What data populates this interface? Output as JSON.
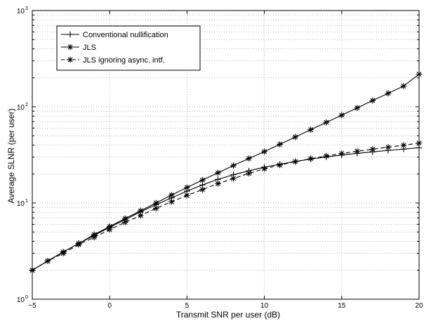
{
  "chart_data": {
    "type": "line",
    "title": "",
    "xlabel": "Transmit SNR per user (dB)",
    "ylabel": "Average SLNR (per user)",
    "xlim": [
      -5,
      20
    ],
    "ylim": [
      1,
      1000
    ],
    "yscale": "log",
    "grid": true,
    "legend_position": "top-left",
    "x_ticks": [
      -5,
      0,
      5,
      10,
      15,
      20
    ],
    "x_tick_labels": [
      "−5",
      "0",
      "5",
      "10",
      "15",
      "20"
    ],
    "y_ticks": [
      1,
      10,
      100,
      1000
    ],
    "y_tick_labels": [
      {
        "base": "10",
        "exp": "0"
      },
      {
        "base": "10",
        "exp": "1"
      },
      {
        "base": "10",
        "exp": "2"
      },
      {
        "base": "10",
        "exp": "3"
      }
    ],
    "x": [
      -5,
      -4,
      -3,
      -2,
      -1,
      0,
      1,
      2,
      3,
      4,
      5,
      6,
      7,
      8,
      9,
      10,
      11,
      12,
      13,
      14,
      15,
      16,
      17,
      18,
      19,
      20
    ],
    "series": [
      {
        "name": "Conventional nullification",
        "marker": "plus",
        "line": "solid",
        "color": "#000000",
        "values": [
          2.0,
          2.5,
          3.1,
          3.8,
          4.6,
          5.6,
          6.7,
          8.1,
          9.6,
          11.3,
          13.3,
          15.4,
          17.6,
          19.7,
          21.6,
          23.6,
          25.3,
          27.0,
          28.6,
          30.1,
          31.5,
          32.8,
          34.0,
          35.2,
          36.3,
          37.5
        ]
      },
      {
        "name": "JLS",
        "marker": "star",
        "line": "solid",
        "color": "#000000",
        "values": [
          2.0,
          2.5,
          3.1,
          3.8,
          4.7,
          5.7,
          6.9,
          8.3,
          10.0,
          12.1,
          14.5,
          17.3,
          20.6,
          24.5,
          29.0,
          34.2,
          40.7,
          48.5,
          57.8,
          68.8,
          81.8,
          97.3,
          116,
          138,
          164,
          218
        ]
      },
      {
        "name": "JLS ignoring async. intf.",
        "marker": "star",
        "line": "dashed",
        "color": "#000000",
        "values": [
          2.0,
          2.5,
          3.0,
          3.7,
          4.4,
          5.3,
          6.3,
          7.4,
          8.8,
          10.3,
          12.0,
          13.8,
          15.9,
          18.0,
          20.3,
          22.7,
          24.8,
          26.9,
          28.9,
          30.8,
          32.7,
          34.5,
          36.2,
          38.0,
          39.8,
          42.0
        ]
      }
    ]
  }
}
